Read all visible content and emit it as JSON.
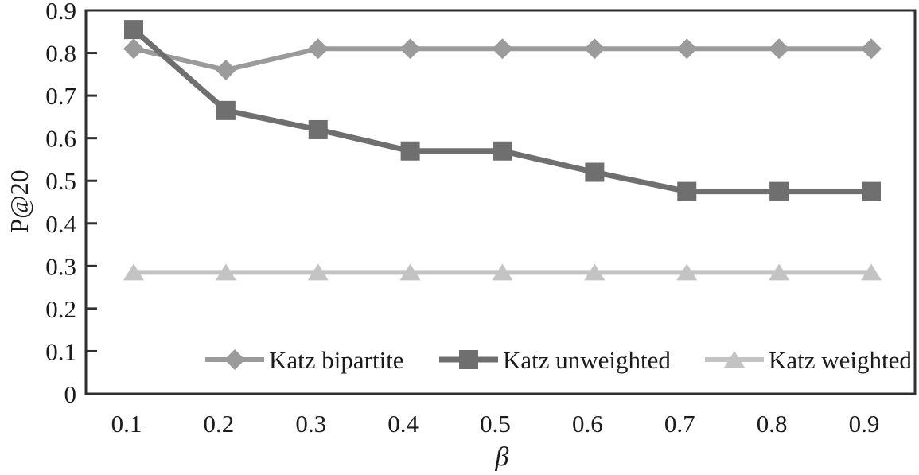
{
  "figure": {
    "background": "#ffffff"
  },
  "chart_data": {
    "type": "line",
    "title": "",
    "xlabel": "β",
    "ylabel": "P@20",
    "x": [
      0.1,
      0.2,
      0.3,
      0.4,
      0.5,
      0.6,
      0.7,
      0.8,
      0.9
    ],
    "x_tick_labels": [
      "0.1",
      "0.2",
      "0.3",
      "0.4",
      "0.5",
      "0.6",
      "0.7",
      "0.8",
      "0.9"
    ],
    "y_ticks": [
      0,
      0.1,
      0.2,
      0.3,
      0.4,
      0.5,
      0.6,
      0.7,
      0.8,
      0.9
    ],
    "y_tick_labels": [
      "0",
      "0.1",
      "0.2",
      "0.3",
      "0.4",
      "0.5",
      "0.6",
      "0.7",
      "0.8",
      "0.9"
    ],
    "ylim": [
      0,
      0.9
    ],
    "grid": false,
    "legend_position": "bottom-inside",
    "axis_color": "#2f2f2f",
    "text_color": "#1b1b1b",
    "series": [
      {
        "name": "Katz bipartite",
        "marker": "diamond",
        "color": "#9b9b9b",
        "values": [
          0.81,
          0.76,
          0.81,
          0.81,
          0.81,
          0.81,
          0.81,
          0.81,
          0.81
        ]
      },
      {
        "name": "Katz unweighted",
        "marker": "square",
        "color": "#6f6f6f",
        "values": [
          0.855,
          0.665,
          0.62,
          0.57,
          0.57,
          0.52,
          0.475,
          0.475,
          0.475
        ]
      },
      {
        "name": "Katz weighted",
        "marker": "triangle",
        "color": "#c3c3c3",
        "values": [
          0.285,
          0.285,
          0.285,
          0.285,
          0.285,
          0.285,
          0.285,
          0.285,
          0.285
        ]
      }
    ]
  }
}
